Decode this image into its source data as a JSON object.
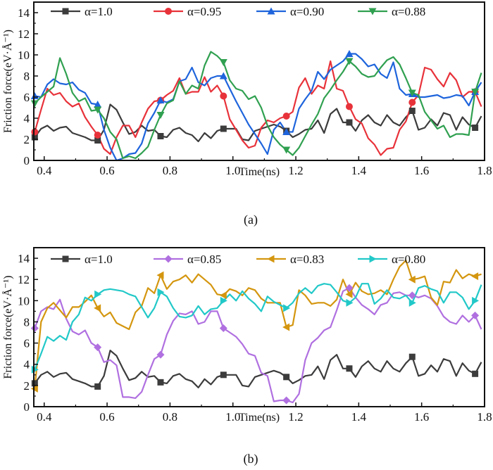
{
  "chart_data": [
    {
      "type": "line",
      "panel_label": "(a)",
      "title": "",
      "xlabel": "Time(ns)",
      "ylabel": "Friction force(eV·Å⁻¹)",
      "xlim": [
        0.367,
        1.8
      ],
      "ylim": [
        0,
        15
      ],
      "xticks": [
        0.4,
        0.6,
        0.8,
        1.0,
        1.2,
        1.4,
        1.6,
        1.8
      ],
      "xtick_labels": [
        "0.4",
        "0.6",
        "0.8",
        "1.0",
        "1.2",
        "1.4",
        "1.6",
        "1.8"
      ],
      "yticks": [
        0,
        2,
        4,
        6,
        8,
        10,
        12,
        14
      ],
      "ytick_labels": [
        "0",
        "2",
        "4",
        "6",
        "8",
        "10",
        "12",
        "14"
      ],
      "grid": false,
      "legend": "top",
      "x": [
        0.37,
        0.39,
        0.41,
        0.43,
        0.45,
        0.47,
        0.49,
        0.51,
        0.53,
        0.55,
        0.57,
        0.59,
        0.61,
        0.63,
        0.65,
        0.67,
        0.69,
        0.71,
        0.73,
        0.75,
        0.77,
        0.79,
        0.81,
        0.83,
        0.85,
        0.87,
        0.89,
        0.91,
        0.93,
        0.95,
        0.97,
        0.99,
        1.01,
        1.03,
        1.05,
        1.07,
        1.09,
        1.11,
        1.13,
        1.15,
        1.17,
        1.19,
        1.21,
        1.23,
        1.25,
        1.27,
        1.29,
        1.31,
        1.33,
        1.35,
        1.37,
        1.39,
        1.41,
        1.43,
        1.45,
        1.47,
        1.49,
        1.51,
        1.53,
        1.55,
        1.57,
        1.59,
        1.61,
        1.63,
        1.65,
        1.67,
        1.69,
        1.71,
        1.73,
        1.75,
        1.77,
        1.79
      ],
      "series": [
        {
          "name": "α=1.0",
          "label": "α=1.0",
          "color": "#3c3c3c",
          "marker": "square",
          "values": [
            2.2,
            3.0,
            3.3,
            2.8,
            3.1,
            3.2,
            2.6,
            2.4,
            2.2,
            1.9,
            1.9,
            2.9,
            5.3,
            4.8,
            3.6,
            2.5,
            2.7,
            3.3,
            2.8,
            2.9,
            2.3,
            2.2,
            2.9,
            3.1,
            2.6,
            2.4,
            1.8,
            2.6,
            2.1,
            2.8,
            3.0,
            3.0,
            3.0,
            2.0,
            1.9,
            2.8,
            3.0,
            3.2,
            3.4,
            3.2,
            2.8,
            2.2,
            2.5,
            2.9,
            3.0,
            3.8,
            2.6,
            4.4,
            4.9,
            3.6,
            3.6,
            2.8,
            3.8,
            4.3,
            3.6,
            3.3,
            4.3,
            3.6,
            3.3,
            4.1,
            4.7,
            2.9,
            3.1,
            3.9,
            3.3,
            4.5,
            4.3,
            2.9,
            4.1,
            3.4,
            3.1,
            4.2
          ]
        },
        {
          "name": "α=0.95",
          "label": "α=0.95",
          "color": "#e8323a",
          "marker": "circle",
          "values": [
            2.7,
            4.8,
            6.8,
            6.2,
            6.4,
            5.6,
            5.1,
            5.4,
            4.1,
            3.2,
            2.4,
            1.1,
            0.6,
            2.2,
            3.3,
            3.3,
            2.2,
            3.6,
            4.9,
            5.6,
            5.7,
            6.2,
            6.6,
            7.8,
            6.3,
            6.5,
            6.5,
            7.9,
            6.5,
            7.1,
            6.1,
            3.9,
            2.9,
            1.9,
            1.2,
            1.4,
            3.1,
            3.8,
            3.6,
            4.0,
            4.2,
            4.6,
            6.9,
            7.8,
            6.3,
            7.1,
            6.8,
            9.4,
            6.8,
            6.6,
            5.1,
            3.9,
            3.5,
            2.1,
            1.5,
            0.5,
            1.1,
            1.2,
            2.9,
            3.7,
            5.5,
            6.2,
            8.8,
            8.6,
            7.7,
            7.0,
            8.3,
            7.6,
            6.0,
            6.5,
            6.5,
            5.1
          ]
        },
        {
          "name": "α=0.90",
          "label": "α=0.90",
          "color": "#1e64dc",
          "marker": "triangle-up",
          "values": [
            6.1,
            6.0,
            7.2,
            7.7,
            7.3,
            7.2,
            7.4,
            6.7,
            6.4,
            5.4,
            5.3,
            2.9,
            1.2,
            0.0,
            0.2,
            0.6,
            0.7,
            1.6,
            3.5,
            4.5,
            5.7,
            5.5,
            5.8,
            7.5,
            7.7,
            8.8,
            7.4,
            7.1,
            7.8,
            8.0,
            8.0,
            6.8,
            5.6,
            4.5,
            3.4,
            2.5,
            1.6,
            0.6,
            2.9,
            3.6,
            2.7,
            2.7,
            4.9,
            5.8,
            6.6,
            8.4,
            7.7,
            8.6,
            9.0,
            9.4,
            10.1,
            10.1,
            9.6,
            8.9,
            9.1,
            8.2,
            7.8,
            9.3,
            6.8,
            6.2,
            6.3,
            6.0,
            6.0,
            6.1,
            6.2,
            5.9,
            6.0,
            6.2,
            6.1,
            5.2,
            6.5,
            7.4
          ]
        },
        {
          "name": "α=0.88",
          "label": "α=0.88",
          "color": "#30a050",
          "marker": "triangle-down",
          "values": [
            5.4,
            6.0,
            6.5,
            7.0,
            9.7,
            8.2,
            6.4,
            5.6,
            5.9,
            4.7,
            4.8,
            4.0,
            2.7,
            2.0,
            0.2,
            0.4,
            0.2,
            0.7,
            1.3,
            2.9,
            4.3,
            5.4,
            5.7,
            7.5,
            6.3,
            7.1,
            6.8,
            9.0,
            10.3,
            9.9,
            9.3,
            7.6,
            6.8,
            6.6,
            5.8,
            6.1,
            5.0,
            3.3,
            2.2,
            1.5,
            1.0,
            0.5,
            1.2,
            2.3,
            3.4,
            4.4,
            5.9,
            6.7,
            7.6,
            8.4,
            9.4,
            8.9,
            8.2,
            7.9,
            8.0,
            8.8,
            9.5,
            9.8,
            9.1,
            7.8,
            6.4,
            6.2,
            4.6,
            3.8,
            3.0,
            3.3,
            2.2,
            2.5,
            2.5,
            2.4,
            6.5,
            8.3
          ]
        }
      ]
    },
    {
      "type": "line",
      "panel_label": "(b)",
      "title": "",
      "xlabel": "Time(ns)",
      "ylabel": "Friction force(eV·Å⁻¹)",
      "xlim": [
        0.367,
        1.8
      ],
      "ylim": [
        0,
        15
      ],
      "xticks": [
        0.4,
        0.6,
        0.8,
        1.0,
        1.2,
        1.4,
        1.6,
        1.8
      ],
      "xtick_labels": [
        "0.4",
        "0.6",
        "0.8",
        "1.0",
        "1.2",
        "1.4",
        "1.6",
        "1.8"
      ],
      "yticks": [
        0,
        2,
        4,
        6,
        8,
        10,
        12,
        14
      ],
      "ytick_labels": [
        "0",
        "2",
        "4",
        "6",
        "8",
        "10",
        "12",
        "14"
      ],
      "grid": false,
      "legend": "top",
      "x": [
        0.37,
        0.39,
        0.41,
        0.43,
        0.45,
        0.47,
        0.49,
        0.51,
        0.53,
        0.55,
        0.57,
        0.59,
        0.61,
        0.63,
        0.65,
        0.67,
        0.69,
        0.71,
        0.73,
        0.75,
        0.77,
        0.79,
        0.81,
        0.83,
        0.85,
        0.87,
        0.89,
        0.91,
        0.93,
        0.95,
        0.97,
        0.99,
        1.01,
        1.03,
        1.05,
        1.07,
        1.09,
        1.11,
        1.13,
        1.15,
        1.17,
        1.19,
        1.21,
        1.23,
        1.25,
        1.27,
        1.29,
        1.31,
        1.33,
        1.35,
        1.37,
        1.39,
        1.41,
        1.43,
        1.45,
        1.47,
        1.49,
        1.51,
        1.53,
        1.55,
        1.57,
        1.59,
        1.61,
        1.63,
        1.65,
        1.67,
        1.69,
        1.71,
        1.73,
        1.75,
        1.77,
        1.79
      ],
      "series": [
        {
          "name": "α=1.0",
          "label": "α=1.0",
          "color": "#3c3c3c",
          "marker": "square",
          "values": [
            2.2,
            3.0,
            3.3,
            2.8,
            3.1,
            3.2,
            2.6,
            2.4,
            2.2,
            1.9,
            1.9,
            2.9,
            5.3,
            4.8,
            3.6,
            2.5,
            2.7,
            3.3,
            2.8,
            2.9,
            2.3,
            2.2,
            2.9,
            3.1,
            2.6,
            2.4,
            1.8,
            2.6,
            2.1,
            2.8,
            3.0,
            3.0,
            3.0,
            2.0,
            1.9,
            2.8,
            3.0,
            3.2,
            3.4,
            3.2,
            2.8,
            2.2,
            2.5,
            2.9,
            3.0,
            3.8,
            2.6,
            4.4,
            4.9,
            3.6,
            3.6,
            2.8,
            3.8,
            4.3,
            3.6,
            3.3,
            4.3,
            3.6,
            3.3,
            4.1,
            4.7,
            2.9,
            3.1,
            3.9,
            3.3,
            4.5,
            4.3,
            2.9,
            4.1,
            3.4,
            3.1,
            4.2
          ]
        },
        {
          "name": "α=0.85",
          "label": "α=0.85",
          "color": "#b070e0",
          "marker": "diamond",
          "values": [
            7.4,
            9.0,
            9.4,
            9.2,
            10.1,
            8.3,
            7.1,
            6.8,
            7.2,
            6.0,
            5.6,
            4.2,
            4.4,
            3.9,
            0.9,
            0.9,
            0.8,
            1.4,
            3.0,
            4.5,
            4.9,
            6.8,
            8.1,
            8.8,
            8.7,
            9.0,
            7.8,
            8.0,
            9.0,
            9.0,
            7.4,
            7.0,
            6.6,
            5.9,
            5.0,
            4.8,
            3.2,
            2.9,
            0.5,
            0.6,
            0.6,
            0.4,
            1.2,
            4.4,
            6.0,
            6.5,
            7.2,
            7.5,
            9.1,
            10.9,
            11.2,
            10.3,
            9.6,
            9.2,
            8.7,
            9.6,
            9.8,
            10.7,
            10.8,
            10.5,
            10.5,
            10.3,
            10.5,
            10.2,
            9.5,
            8.5,
            8.0,
            7.8,
            8.6,
            8.0,
            8.6,
            7.3
          ]
        },
        {
          "name": "α=0.83",
          "label": "α=0.83",
          "color": "#d4960f",
          "marker": "triangle-left",
          "values": [
            1.7,
            8.0,
            9.3,
            9.8,
            9.1,
            8.4,
            9.4,
            9.4,
            9.9,
            10.5,
            9.3,
            8.5,
            8.9,
            7.9,
            7.6,
            7.3,
            8.9,
            9.5,
            11.2,
            10.7,
            12.4,
            11.1,
            11.8,
            12.0,
            12.4,
            11.7,
            12.5,
            12.0,
            11.5,
            10.6,
            10.5,
            11.1,
            10.9,
            10.5,
            11.2,
            11.0,
            10.2,
            9.8,
            9.8,
            9.8,
            7.5,
            7.7,
            11.0,
            10.5,
            9.7,
            9.8,
            9.8,
            9.5,
            10.1,
            12.0,
            10.6,
            11.7,
            10.9,
            10.6,
            10.7,
            11.0,
            10.6,
            12.0,
            13.2,
            13.8,
            12.0,
            12.1,
            12.3,
            10.3,
            9.6,
            11.8,
            11.7,
            12.9,
            12.1,
            12.5,
            12.3,
            12.5
          ]
        },
        {
          "name": "α=0.80",
          "label": "α=0.80",
          "color": "#22c8c8",
          "marker": "triangle-right",
          "values": [
            3.5,
            5.0,
            6.6,
            6.2,
            6.7,
            6.3,
            8.0,
            8.7,
            10.3,
            10.0,
            10.6,
            11.0,
            11.1,
            11.0,
            10.9,
            10.6,
            10.4,
            9.4,
            8.4,
            9.3,
            10.8,
            10.4,
            9.3,
            8.5,
            8.4,
            8.6,
            9.5,
            8.7,
            9.2,
            9.3,
            10.0,
            10.6,
            10.0,
            10.9,
            10.2,
            9.7,
            9.0,
            10.4,
            9.9,
            9.6,
            9.3,
            9.8,
            10.7,
            11.2,
            10.7,
            11.4,
            11.6,
            11.5,
            10.8,
            10.0,
            9.8,
            10.3,
            11.6,
            11.6,
            9.7,
            10.2,
            11.0,
            10.3,
            10.2,
            10.5,
            9.8,
            11.2,
            11.4,
            11.1,
            10.9,
            9.8,
            10.8,
            10.8,
            10.3,
            9.2,
            10.0,
            11.5
          ]
        }
      ]
    }
  ]
}
